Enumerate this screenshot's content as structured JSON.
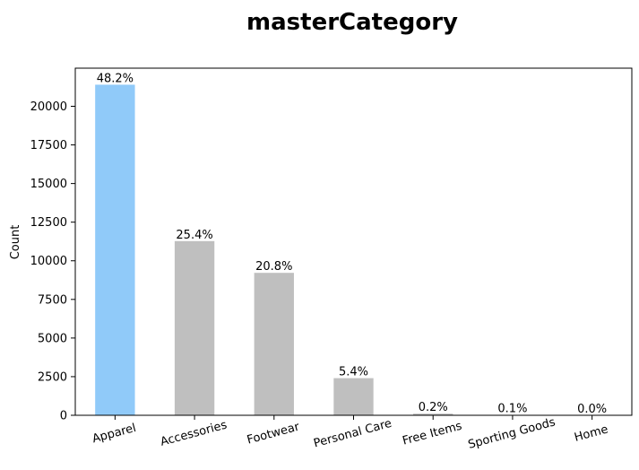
{
  "chart_data": {
    "type": "bar",
    "title": "masterCategory",
    "y_label": "Count",
    "categories": [
      "Apparel",
      "Accessories",
      "Footwear",
      "Personal Care",
      "Free Items",
      "Sporting Goods",
      "Home"
    ],
    "values": [
      21397,
      11274,
      9219,
      2403,
      105,
      25,
      1
    ],
    "bar_labels": [
      "48.2%",
      "25.4%",
      "20.8%",
      "5.4%",
      "0.2%",
      "0.1%",
      "0.0%"
    ],
    "colors": [
      "#90caf9",
      "#bfbfbf",
      "#bfbfbf",
      "#bfbfbf",
      "#bfbfbf",
      "#bfbfbf",
      "#bfbfbf"
    ],
    "ylim": [
      0,
      22467
    ],
    "yticks": [
      0,
      2500,
      5000,
      7500,
      10000,
      12500,
      15000,
      17500,
      20000
    ],
    "grid": false
  }
}
